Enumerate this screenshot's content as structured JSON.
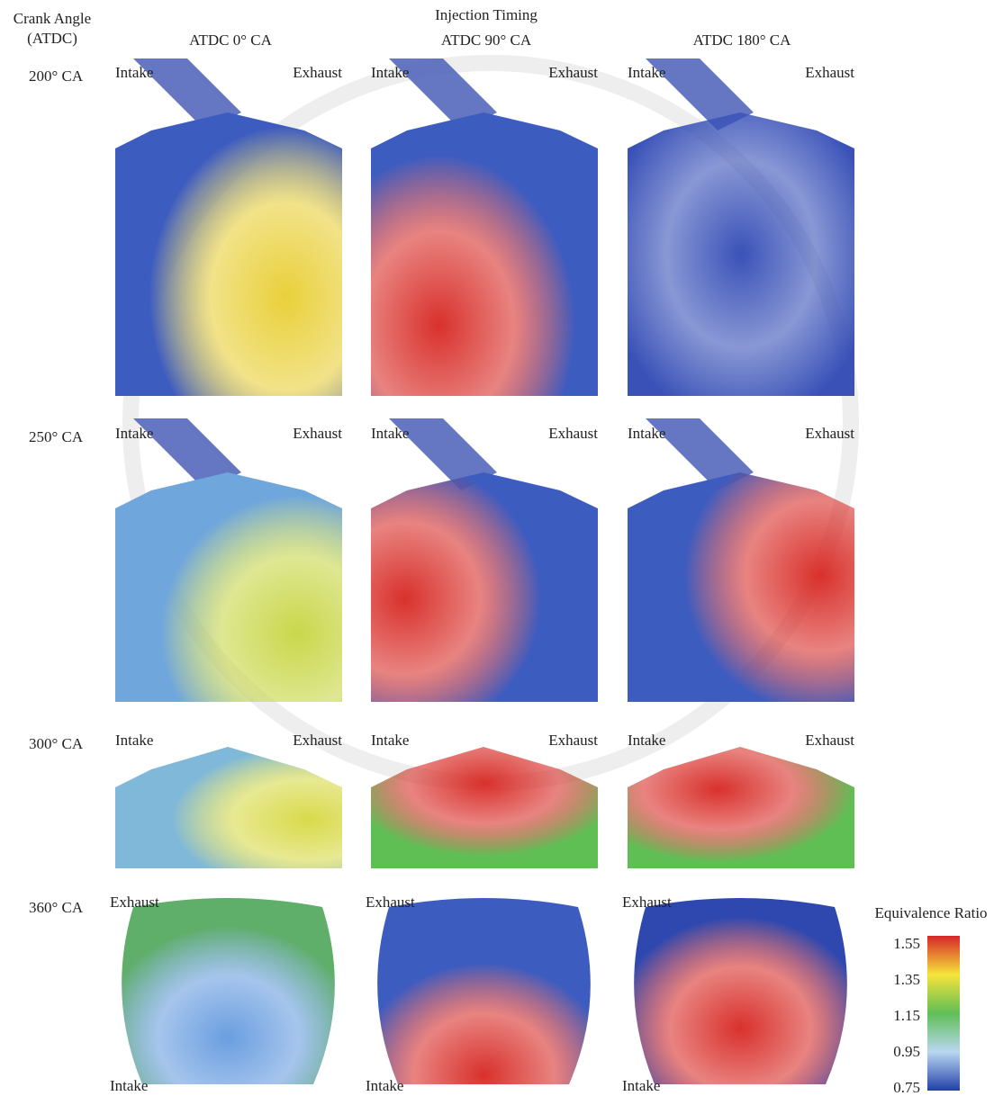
{
  "header": {
    "row_axis_title": [
      "Crank Angle",
      "(ATDC)"
    ],
    "column_axis_title": "Injection Timing",
    "columns": [
      "ATDC 0° CA",
      "ATDC 90° CA",
      "ATDC 180° CA"
    ]
  },
  "rows": [
    {
      "label": "200° CA",
      "panels": [
        {
          "labels": [
            "Intake",
            "Exhaust"
          ]
        },
        {
          "labels": [
            "Intake",
            "Exhaust"
          ]
        },
        {
          "labels": [
            "Intake",
            "Exhaust"
          ]
        }
      ]
    },
    {
      "label": "250° CA",
      "panels": [
        {
          "labels": [
            "Intake",
            "Exhaust"
          ]
        },
        {
          "labels": [
            "Intake",
            "Exhaust"
          ]
        },
        {
          "labels": [
            "Intake",
            "Exhaust"
          ]
        }
      ]
    },
    {
      "label": "300° CA",
      "panels": [
        {
          "labels": [
            "Intake",
            "Exhaust"
          ]
        },
        {
          "labels": [
            "Intake",
            "Exhaust"
          ]
        },
        {
          "labels": [
            "Intake",
            "Exhaust"
          ]
        }
      ]
    },
    {
      "label": "360° CA",
      "panels": [
        {
          "labels": [
            "Exhaust",
            "Intake"
          ]
        },
        {
          "labels": [
            "Exhaust",
            "Intake"
          ]
        },
        {
          "labels": [
            "Exhaust",
            "Intake"
          ]
        }
      ]
    }
  ],
  "colorbar": {
    "title": "Equivalence Ratio",
    "ticks": [
      "1.55",
      "1.35",
      "1.15",
      "0.95",
      "0.75"
    ]
  }
}
